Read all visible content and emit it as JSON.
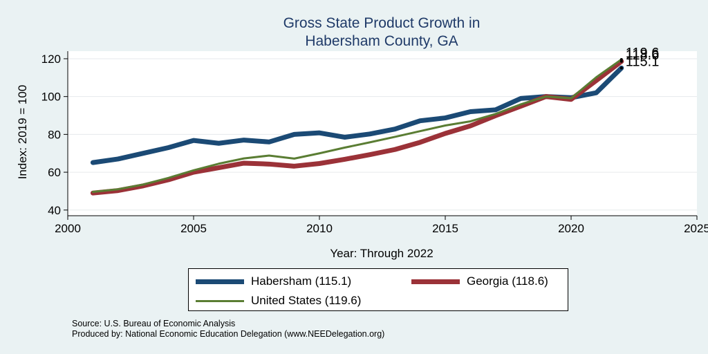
{
  "chart_data": {
    "type": "line",
    "title": [
      "Gross State Product Growth in",
      "Habersham County, GA"
    ],
    "xlabel": "Year: Through 2022",
    "ylabel": "Index: 2019 = 100",
    "xlim": [
      2000,
      2025
    ],
    "ylim": [
      37,
      124
    ],
    "xticks": [
      2000,
      2005,
      2010,
      2015,
      2020,
      2025
    ],
    "yticks": [
      40,
      60,
      80,
      100,
      120
    ],
    "grid": true,
    "legend_placement": "bottom",
    "x": [
      2001,
      2002,
      2003,
      2004,
      2005,
      2006,
      2007,
      2008,
      2009,
      2010,
      2011,
      2012,
      2013,
      2014,
      2015,
      2016,
      2017,
      2018,
      2019,
      2020,
      2021,
      2022
    ],
    "series": [
      {
        "name": "Habersham",
        "legend_label": "Habersham  (115.1)",
        "end_label": "115.1",
        "color": "#1b4a75",
        "values": [
          65.1,
          67.0,
          70.0,
          73.0,
          76.8,
          75.3,
          77.0,
          76.0,
          80.0,
          80.8,
          78.5,
          80.2,
          82.8,
          87.2,
          88.7,
          92.0,
          93.0,
          99.0,
          100.0,
          99.4,
          102.0,
          115.1
        ]
      },
      {
        "name": "Georgia",
        "legend_label": "Georgia (118.6)",
        "end_label": "118.6",
        "color": "#9b3238",
        "values": [
          49.0,
          50.3,
          52.8,
          56.0,
          60.0,
          62.4,
          64.8,
          64.3,
          63.2,
          64.6,
          66.8,
          69.3,
          72.0,
          75.8,
          80.5,
          84.5,
          89.9,
          94.9,
          100.0,
          98.5,
          108.5,
          118.6
        ]
      },
      {
        "name": "United States",
        "legend_label": "United States (119.6)",
        "end_label": "119.6",
        "color": "#5a7d33",
        "values": [
          49.6,
          51.0,
          53.5,
          57.0,
          61.0,
          64.5,
          67.3,
          68.8,
          67.2,
          70.0,
          73.0,
          75.8,
          78.7,
          81.7,
          84.7,
          86.9,
          90.8,
          95.9,
          100.0,
          99.1,
          110.2,
          119.6
        ]
      }
    ]
  },
  "notes": {
    "source": "Source: U.S. Bureau of Economic Analysis",
    "produced_by": "Produced by: National Economic Education Delegation (www.NEEDelegation.org)"
  }
}
